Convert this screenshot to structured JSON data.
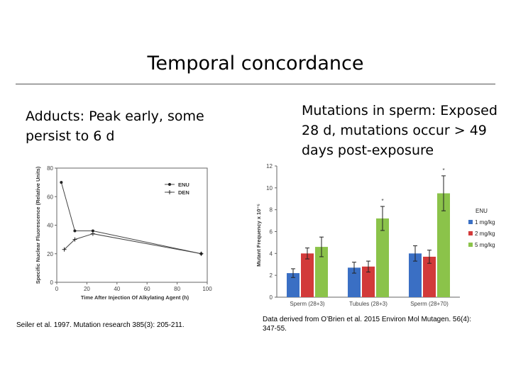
{
  "slide": {
    "title": "Temporal concordance",
    "left_heading": "Adducts: Peak early, some persist to 6 d",
    "right_heading": "Mutations in sperm: Exposed 28 d, mutations occur > 49 days post-exposure",
    "left_citation": "Seiler et al. 1997. Mutation research 385(3): 205-211.",
    "right_citation": "Data derived from O’Brien et al. 2015 Environ Mol Mutagen. 56(4): 347-55."
  },
  "chart_data": [
    {
      "type": "line",
      "xlabel": "Time After Injection Of Alkylating Agent (h)",
      "ylabel": "Specific Nuclear Fluorescence (Relative Units)",
      "xlim": [
        0,
        100
      ],
      "ylim": [
        0,
        80
      ],
      "xticks": [
        0,
        20,
        40,
        60,
        80,
        100
      ],
      "yticks": [
        0,
        20,
        40,
        60,
        80
      ],
      "legend_position": "top-right",
      "grid": false,
      "series": [
        {
          "name": "ENU",
          "x": [
            3,
            12,
            24,
            96
          ],
          "y": [
            70,
            36,
            36,
            20
          ]
        },
        {
          "name": "DEN",
          "x": [
            5,
            12,
            24,
            96
          ],
          "y": [
            23,
            30,
            34,
            20
          ]
        }
      ]
    },
    {
      "type": "bar",
      "ylabel": "Mutant Frequency x 10⁻⁵",
      "ylim": [
        0,
        12
      ],
      "yticks": [
        0,
        2,
        4,
        6,
        8,
        10,
        12
      ],
      "legend_position": "right",
      "legend_title": "ENU",
      "grid": false,
      "categories": [
        "Sperm (28+3)",
        "Tubules (28+3)",
        "Sperm (28+70)"
      ],
      "series": [
        {
          "name": "1 mg/kg",
          "color": "#3a6fc4",
          "values": [
            2.2,
            2.7,
            4.0
          ],
          "errors": [
            0.4,
            0.5,
            0.7
          ]
        },
        {
          "name": "2 mg/kg",
          "color": "#d23a3a",
          "values": [
            4.0,
            2.8,
            3.7
          ],
          "errors": [
            0.5,
            0.5,
            0.6
          ]
        },
        {
          "name": "5 mg/kg",
          "color": "#8bc34a",
          "values": [
            4.6,
            7.2,
            9.5
          ],
          "errors": [
            0.9,
            1.1,
            1.6
          ]
        }
      ],
      "annotations": [
        {
          "category": "Tubules (28+3)",
          "series": "5 mg/kg",
          "text": "*"
        },
        {
          "category": "Sperm (28+70)",
          "series": "5 mg/kg",
          "text": "*"
        }
      ]
    }
  ]
}
